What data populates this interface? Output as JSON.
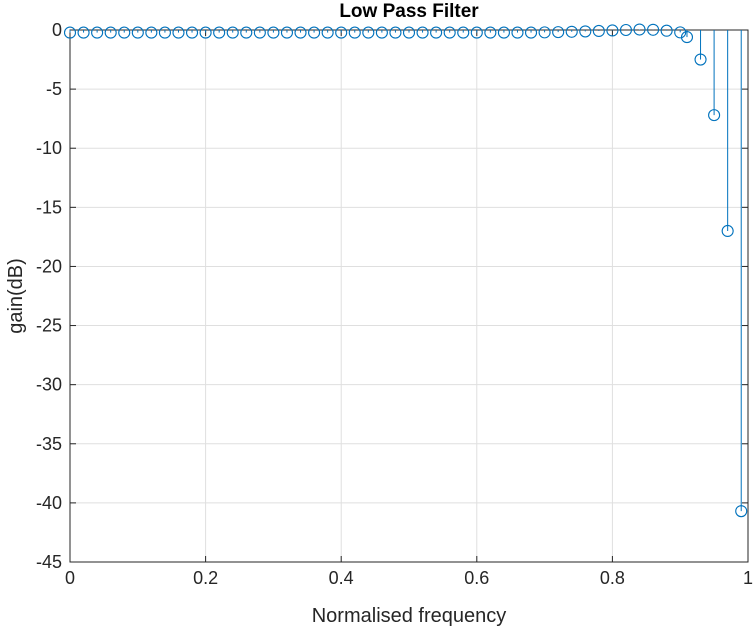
{
  "chart_data": {
    "type": "stem",
    "title": "Low Pass Filter",
    "xlabel": "Normalised frequency",
    "ylabel": "gain(dB)",
    "xlim": [
      0,
      1
    ],
    "ylim": [
      -45,
      0
    ],
    "xticks": [
      0,
      0.2,
      0.4,
      0.6,
      0.8,
      1
    ],
    "xtick_labels": [
      "0",
      "0.2",
      "0.4",
      "0.6",
      "0.8",
      "1"
    ],
    "yticks": [
      0,
      -5,
      -10,
      -15,
      -20,
      -25,
      -30,
      -35,
      -40,
      -45
    ],
    "ytick_labels": [
      "0",
      "-5",
      "-10",
      "-15",
      "-20",
      "-25",
      "-30",
      "-35",
      "-40",
      "-45"
    ],
    "grid": true,
    "colors": {
      "series": "#0072BD",
      "grid": "#DFDFDF",
      "axis": "#262626"
    },
    "series": [
      {
        "x": [
          0,
          0.02,
          0.04,
          0.06,
          0.08,
          0.1,
          0.12,
          0.14,
          0.16,
          0.18,
          0.2,
          0.22,
          0.24,
          0.26,
          0.28,
          0.3,
          0.32,
          0.34,
          0.36,
          0.38,
          0.4,
          0.42,
          0.44,
          0.46,
          0.48,
          0.5,
          0.52,
          0.54,
          0.56,
          0.58,
          0.6,
          0.62,
          0.64,
          0.66,
          0.68,
          0.7,
          0.72,
          0.74,
          0.76,
          0.78,
          0.8,
          0.82,
          0.84,
          0.86,
          0.88,
          0.9,
          0.91,
          0.93,
          0.95,
          0.97,
          0.99
        ],
        "y": [
          -0.22,
          -0.22,
          -0.22,
          -0.22,
          -0.22,
          -0.22,
          -0.22,
          -0.22,
          -0.22,
          -0.22,
          -0.22,
          -0.22,
          -0.22,
          -0.22,
          -0.22,
          -0.22,
          -0.22,
          -0.22,
          -0.22,
          -0.22,
          -0.22,
          -0.22,
          -0.22,
          -0.22,
          -0.22,
          -0.22,
          -0.22,
          -0.22,
          -0.22,
          -0.22,
          -0.22,
          -0.22,
          -0.22,
          -0.22,
          -0.22,
          -0.2,
          -0.18,
          -0.15,
          -0.12,
          -0.08,
          -0.04,
          0.0,
          0.04,
          0.02,
          -0.06,
          -0.2,
          -0.6,
          -2.5,
          -7.2,
          -17.0,
          -40.7
        ]
      }
    ]
  }
}
